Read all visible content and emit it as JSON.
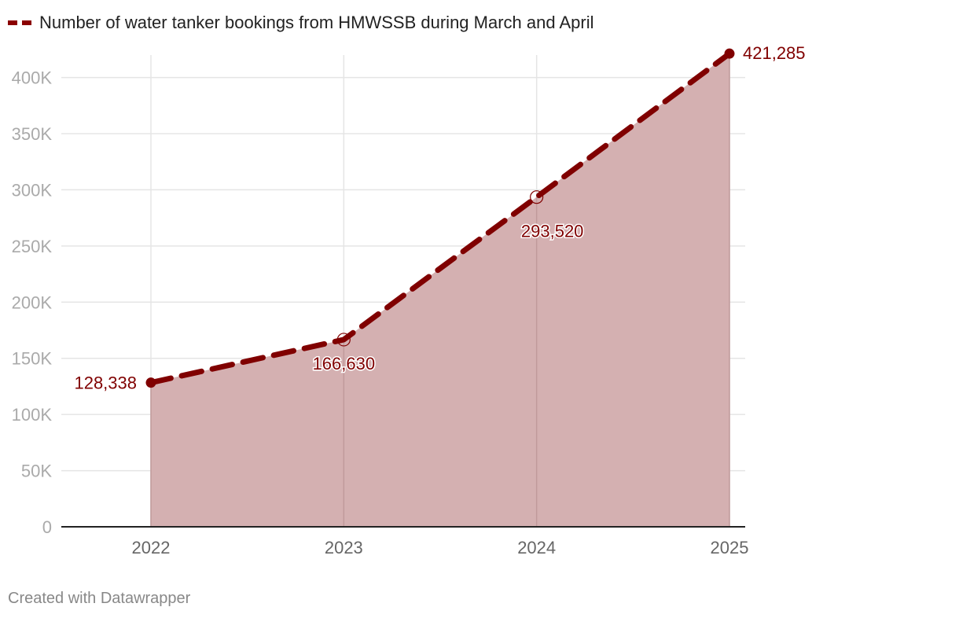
{
  "colors": {
    "line": "#800000",
    "area": "#d4b0b1",
    "grid": "#e5e5e5",
    "tick": "#aaaaaa",
    "axis": "#222222",
    "label": "#800000"
  },
  "legend": {
    "label": "Number of water tanker bookings from HMWSSB during March and April"
  },
  "footer": {
    "credit": "Created with Datawrapper"
  },
  "chart_data": {
    "type": "area",
    "x": [
      "2022",
      "2023",
      "2024",
      "2025"
    ],
    "series": [
      {
        "name": "Number of water tanker bookings from HMWSSB during March and April",
        "values": [
          128338,
          166630,
          293520,
          421285
        ],
        "labels": [
          "128,338",
          "166,630",
          "293,520",
          "421,285"
        ]
      }
    ],
    "ylim": [
      0,
      420000
    ],
    "yticks": [
      0,
      50000,
      100000,
      150000,
      200000,
      250000,
      300000,
      350000,
      400000
    ],
    "ytick_labels": [
      "0",
      "50K",
      "100K",
      "150K",
      "200K",
      "250K",
      "300K",
      "350K",
      "400K"
    ],
    "grid": true,
    "line_style": "dashed",
    "legend_position": "top-left"
  }
}
